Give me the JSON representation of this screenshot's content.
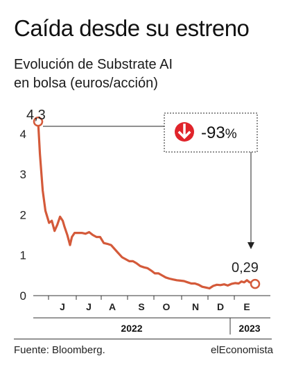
{
  "header": {
    "title": "Caída desde su estreno",
    "subtitle_line1": "Evolución de Substrate AI",
    "subtitle_line2": "en bolsa (euros/acción)"
  },
  "colors": {
    "line": "#d45a3a",
    "badge_icon": "#e0242b",
    "text": "#1a1a1a"
  },
  "badge": {
    "icon": "arrow-down-circle-icon",
    "value": "-93",
    "unit": "%"
  },
  "labels": {
    "start": "4,3",
    "end": "0,29"
  },
  "footer": {
    "source": "Fuente: Bloomberg.",
    "brand": "elEconomista"
  },
  "chart_data": {
    "type": "line",
    "title": "Caída desde su estreno",
    "subtitle": "Evolución de Substrate AI en bolsa (euros/acción)",
    "xlabel": "",
    "ylabel": "",
    "ylim": [
      0,
      4.3
    ],
    "grid": false,
    "y_ticks": [
      "0",
      "1",
      "2",
      "3",
      "4"
    ],
    "x_ticks": [
      "J",
      "J",
      "A",
      "S",
      "O",
      "N",
      "D",
      "E"
    ],
    "years": [
      "2022",
      "2023"
    ],
    "series": [
      {
        "name": "",
        "x": [
          "2022-05-25",
          "2022-05-27",
          "2022-05-30",
          "2022-06-02",
          "2022-06-06",
          "2022-06-09",
          "2022-06-12",
          "2022-06-15",
          "2022-06-18",
          "2022-06-21",
          "2022-06-23",
          "2022-06-26",
          "2022-06-29",
          "2022-07-01",
          "2022-07-04",
          "2022-07-08",
          "2022-07-12",
          "2022-07-16",
          "2022-07-20",
          "2022-07-24",
          "2022-07-28",
          "2022-08-01",
          "2022-08-05",
          "2022-08-09",
          "2022-08-13",
          "2022-08-17",
          "2022-08-21",
          "2022-08-25",
          "2022-08-29",
          "2022-09-02",
          "2022-09-06",
          "2022-09-10",
          "2022-09-14",
          "2022-09-18",
          "2022-09-22",
          "2022-09-26",
          "2022-09-30",
          "2022-10-04",
          "2022-10-08",
          "2022-10-12",
          "2022-10-16",
          "2022-10-20",
          "2022-10-24",
          "2022-10-28",
          "2022-11-01",
          "2022-11-05",
          "2022-11-09",
          "2022-11-13",
          "2022-11-17",
          "2022-11-21",
          "2022-11-25",
          "2022-11-29",
          "2022-12-03",
          "2022-12-07",
          "2022-12-11",
          "2022-12-15",
          "2022-12-19",
          "2022-12-23",
          "2022-12-27",
          "2022-12-31",
          "2023-01-03",
          "2023-01-06",
          "2023-01-09",
          "2023-01-12",
          "2023-01-15",
          "2023-01-18"
        ],
        "values": [
          4.3,
          3.5,
          2.6,
          2.1,
          1.8,
          1.85,
          1.6,
          1.75,
          1.95,
          1.85,
          1.7,
          1.5,
          1.25,
          1.45,
          1.55,
          1.55,
          1.55,
          1.53,
          1.57,
          1.5,
          1.45,
          1.45,
          1.3,
          1.28,
          1.25,
          1.15,
          1.05,
          0.95,
          0.9,
          0.85,
          0.85,
          0.8,
          0.73,
          0.7,
          0.68,
          0.62,
          0.55,
          0.55,
          0.5,
          0.45,
          0.42,
          0.4,
          0.38,
          0.37,
          0.36,
          0.33,
          0.3,
          0.3,
          0.27,
          0.22,
          0.2,
          0.18,
          0.24,
          0.27,
          0.26,
          0.28,
          0.25,
          0.29,
          0.31,
          0.3,
          0.35,
          0.33,
          0.38,
          0.33,
          0.32,
          0.29
        ]
      }
    ],
    "annotations": [
      "4,3",
      "-93%",
      "0,29"
    ]
  }
}
